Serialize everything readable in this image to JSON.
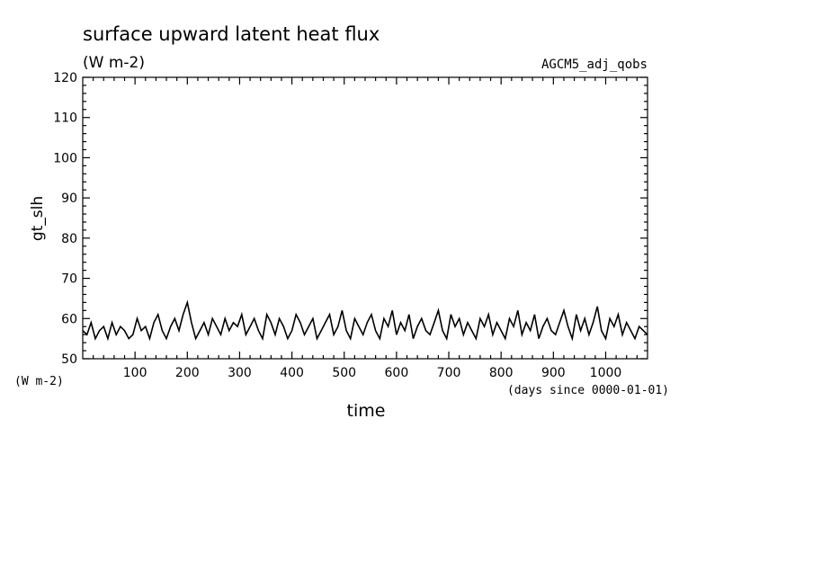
{
  "chart_data": {
    "type": "line",
    "title": "surface upward latent heat flux",
    "units": "(W m-2)",
    "experiment": "AGCM5_adj_qobs",
    "ylabel": "gt_slh",
    "ylabel_units": "(W m-2)",
    "xlabel": "time",
    "xlabel_units": "(days since 0000-01-01)",
    "xlim": [
      0,
      1080
    ],
    "ylim": [
      50,
      120
    ],
    "x_ticks": [
      100,
      200,
      300,
      400,
      500,
      600,
      700,
      800,
      900,
      1000
    ],
    "y_ticks": [
      50,
      60,
      70,
      80,
      90,
      100,
      110,
      120
    ],
    "grid": false,
    "series": [
      {
        "name": "",
        "x": [
          0,
          8,
          16,
          24,
          32,
          40,
          48,
          56,
          64,
          72,
          80,
          88,
          96,
          104,
          112,
          120,
          128,
          136,
          144,
          152,
          160,
          168,
          176,
          184,
          192,
          200,
          208,
          216,
          224,
          232,
          240,
          248,
          256,
          264,
          272,
          280,
          288,
          296,
          304,
          312,
          320,
          328,
          336,
          344,
          352,
          360,
          368,
          376,
          384,
          392,
          400,
          408,
          416,
          424,
          432,
          440,
          448,
          456,
          464,
          472,
          480,
          488,
          496,
          504,
          512,
          520,
          528,
          536,
          544,
          552,
          560,
          568,
          576,
          584,
          592,
          600,
          608,
          616,
          624,
          632,
          640,
          648,
          656,
          664,
          672,
          680,
          688,
          696,
          704,
          712,
          720,
          728,
          736,
          744,
          752,
          760,
          768,
          776,
          784,
          792,
          800,
          808,
          816,
          824,
          832,
          840,
          848,
          856,
          864,
          872,
          880,
          888,
          896,
          904,
          912,
          920,
          928,
          936,
          944,
          952,
          960,
          968,
          976,
          984,
          992,
          1000,
          1008,
          1016,
          1024,
          1032,
          1040,
          1048,
          1056,
          1064,
          1072,
          1080
        ],
        "y": [
          57,
          56,
          59,
          55,
          57,
          58,
          55,
          59,
          56,
          58,
          57,
          55,
          56,
          60,
          57,
          58,
          55,
          59,
          61,
          57,
          55,
          58,
          60,
          57,
          61,
          64,
          59,
          55,
          57,
          59,
          56,
          60,
          58,
          56,
          60,
          57,
          59,
          58,
          61,
          56,
          58,
          60,
          57,
          55,
          61,
          59,
          56,
          60,
          58,
          55,
          57,
          61,
          59,
          56,
          58,
          60,
          55,
          57,
          59,
          61,
          56,
          58,
          62,
          57,
          55,
          60,
          58,
          56,
          59,
          61,
          57,
          55,
          60,
          58,
          62,
          56,
          59,
          57,
          61,
          55,
          58,
          60,
          57,
          56,
          59,
          62,
          57,
          55,
          61,
          58,
          60,
          56,
          59,
          57,
          55,
          60,
          58,
          61,
          56,
          59,
          57,
          55,
          60,
          58,
          62,
          56,
          59,
          57,
          61,
          55,
          58,
          60,
          57,
          56,
          59,
          62,
          58,
          55,
          61,
          57,
          60,
          56,
          59,
          63,
          57,
          55,
          60,
          58,
          61,
          56,
          59,
          57,
          55,
          58,
          57,
          56
        ]
      }
    ]
  }
}
